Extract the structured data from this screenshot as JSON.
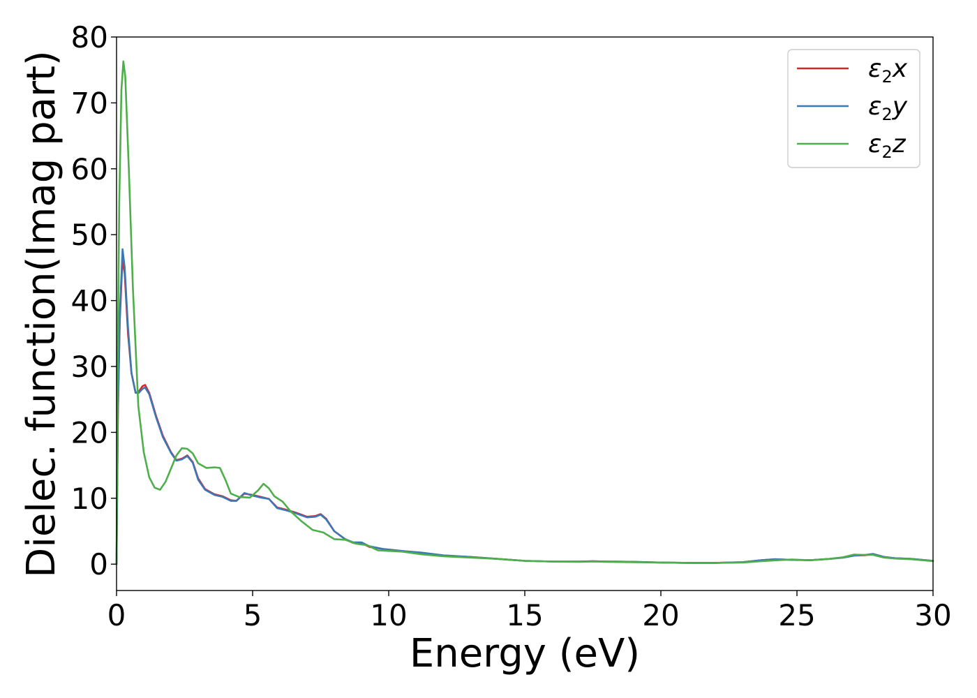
{
  "chart_data": {
    "type": "line",
    "xlabel": "Energy (eV)",
    "ylabel": "Dielec. function(Imag part)",
    "xlim": [
      0,
      30
    ],
    "ylim": [
      -4,
      80
    ],
    "xticks": [
      0,
      5,
      10,
      15,
      20,
      25,
      30
    ],
    "yticks": [
      0,
      10,
      20,
      30,
      40,
      50,
      60,
      70,
      80
    ],
    "grid": false,
    "legend_position": "top-right",
    "series": [
      {
        "name": "ε2x",
        "legend_symbol": "ε",
        "legend_sub": "2",
        "legend_var": "x",
        "color": "#d62728",
        "points": [
          [
            0,
            0
          ],
          [
            0.05,
            22
          ],
          [
            0.12,
            37
          ],
          [
            0.22,
            46.5
          ],
          [
            0.3,
            44
          ],
          [
            0.42,
            35
          ],
          [
            0.55,
            29
          ],
          [
            0.7,
            26
          ],
          [
            0.82,
            26.2
          ],
          [
            0.95,
            27
          ],
          [
            1.05,
            27.2
          ],
          [
            1.2,
            26
          ],
          [
            1.45,
            22.5
          ],
          [
            1.7,
            19.5
          ],
          [
            2.0,
            17
          ],
          [
            2.2,
            15.8
          ],
          [
            2.4,
            16
          ],
          [
            2.6,
            16.5
          ],
          [
            2.8,
            15.5
          ],
          [
            3.0,
            13
          ],
          [
            3.25,
            11.4
          ],
          [
            3.6,
            10.6
          ],
          [
            3.9,
            10.3
          ],
          [
            4.2,
            9.7
          ],
          [
            4.4,
            9.6
          ],
          [
            4.7,
            10.7
          ],
          [
            5.0,
            10.5
          ],
          [
            5.3,
            10.2
          ],
          [
            5.6,
            9.9
          ],
          [
            5.9,
            8.6
          ],
          [
            6.2,
            8.3
          ],
          [
            6.6,
            7.8
          ],
          [
            7.0,
            7.2
          ],
          [
            7.3,
            7.3
          ],
          [
            7.5,
            7.6
          ],
          [
            7.7,
            6.9
          ],
          [
            8.0,
            5.0
          ],
          [
            8.4,
            3.8
          ],
          [
            8.7,
            3.2
          ],
          [
            9.0,
            3.2
          ],
          [
            9.3,
            2.6
          ],
          [
            9.8,
            2.3
          ],
          [
            10.5,
            2.0
          ],
          [
            11.2,
            1.7
          ],
          [
            12.0,
            1.3
          ],
          [
            13.0,
            1.1
          ],
          [
            14.0,
            0.8
          ],
          [
            15.0,
            0.5
          ],
          [
            16.0,
            0.4
          ],
          [
            17.0,
            0.4
          ],
          [
            17.5,
            0.45
          ],
          [
            18.0,
            0.4
          ],
          [
            19.0,
            0.35
          ],
          [
            20.0,
            0.25
          ],
          [
            21.0,
            0.2
          ],
          [
            22.0,
            0.2
          ],
          [
            23.0,
            0.3
          ],
          [
            23.7,
            0.6
          ],
          [
            24.2,
            0.75
          ],
          [
            24.8,
            0.65
          ],
          [
            25.5,
            0.6
          ],
          [
            26.2,
            0.8
          ],
          [
            26.7,
            1.0
          ],
          [
            27.1,
            1.3
          ],
          [
            27.5,
            1.35
          ],
          [
            27.8,
            1.5
          ],
          [
            28.2,
            1.1
          ],
          [
            28.6,
            0.9
          ],
          [
            29.2,
            0.8
          ],
          [
            30,
            0.5
          ]
        ]
      },
      {
        "name": "ε2y",
        "legend_symbol": "ε",
        "legend_sub": "2",
        "legend_var": "y",
        "color": "#3c78b5",
        "points": [
          [
            0,
            0
          ],
          [
            0.05,
            23
          ],
          [
            0.12,
            38
          ],
          [
            0.22,
            47.8
          ],
          [
            0.3,
            45
          ],
          [
            0.42,
            36
          ],
          [
            0.55,
            29
          ],
          [
            0.7,
            26
          ],
          [
            0.82,
            26
          ],
          [
            0.95,
            26.6
          ],
          [
            1.05,
            26.8
          ],
          [
            1.2,
            25.8
          ],
          [
            1.45,
            22.3
          ],
          [
            1.7,
            19.3
          ],
          [
            2.0,
            16.9
          ],
          [
            2.2,
            15.7
          ],
          [
            2.4,
            15.9
          ],
          [
            2.6,
            16.4
          ],
          [
            2.8,
            15.4
          ],
          [
            3.0,
            12.8
          ],
          [
            3.25,
            11.3
          ],
          [
            3.6,
            10.5
          ],
          [
            3.9,
            10.2
          ],
          [
            4.2,
            9.6
          ],
          [
            4.4,
            9.6
          ],
          [
            4.7,
            10.8
          ],
          [
            5.0,
            10.4
          ],
          [
            5.3,
            10.1
          ],
          [
            5.6,
            9.9
          ],
          [
            5.9,
            8.5
          ],
          [
            6.2,
            8.2
          ],
          [
            6.6,
            7.7
          ],
          [
            7.0,
            7.1
          ],
          [
            7.3,
            7.2
          ],
          [
            7.5,
            7.5
          ],
          [
            7.7,
            6.8
          ],
          [
            8.0,
            5.0
          ],
          [
            8.4,
            3.8
          ],
          [
            8.7,
            3.3
          ],
          [
            9.0,
            3.3
          ],
          [
            9.3,
            2.7
          ],
          [
            9.8,
            2.3
          ],
          [
            10.5,
            2.0
          ],
          [
            11.2,
            1.75
          ],
          [
            12.0,
            1.35
          ],
          [
            13.0,
            1.1
          ],
          [
            14.0,
            0.8
          ],
          [
            15.0,
            0.5
          ],
          [
            16.0,
            0.4
          ],
          [
            17.0,
            0.4
          ],
          [
            17.5,
            0.45
          ],
          [
            18.0,
            0.4
          ],
          [
            19.0,
            0.35
          ],
          [
            20.0,
            0.25
          ],
          [
            21.0,
            0.2
          ],
          [
            22.0,
            0.2
          ],
          [
            23.0,
            0.3
          ],
          [
            23.7,
            0.6
          ],
          [
            24.2,
            0.75
          ],
          [
            24.8,
            0.65
          ],
          [
            25.5,
            0.6
          ],
          [
            26.2,
            0.8
          ],
          [
            26.7,
            1.0
          ],
          [
            27.1,
            1.3
          ],
          [
            27.5,
            1.4
          ],
          [
            27.8,
            1.55
          ],
          [
            28.2,
            1.1
          ],
          [
            28.6,
            0.9
          ],
          [
            29.2,
            0.8
          ],
          [
            30,
            0.5
          ]
        ]
      },
      {
        "name": "ε2z",
        "legend_symbol": "ε",
        "legend_sub": "2",
        "legend_var": "z",
        "color": "#4daf4a",
        "points": [
          [
            0,
            0
          ],
          [
            0.04,
            30
          ],
          [
            0.1,
            55
          ],
          [
            0.18,
            72
          ],
          [
            0.25,
            76.3
          ],
          [
            0.32,
            74
          ],
          [
            0.45,
            60
          ],
          [
            0.6,
            42
          ],
          [
            0.8,
            24
          ],
          [
            1.0,
            17
          ],
          [
            1.2,
            13.2
          ],
          [
            1.4,
            11.6
          ],
          [
            1.6,
            11.3
          ],
          [
            1.8,
            12.5
          ],
          [
            2.0,
            14.5
          ],
          [
            2.2,
            16.5
          ],
          [
            2.4,
            17.6
          ],
          [
            2.6,
            17.5
          ],
          [
            2.8,
            16.8
          ],
          [
            3.0,
            15.3
          ],
          [
            3.3,
            14.6
          ],
          [
            3.6,
            14.7
          ],
          [
            3.8,
            14.6
          ],
          [
            4.0,
            12.8
          ],
          [
            4.2,
            10.7
          ],
          [
            4.5,
            10.2
          ],
          [
            4.9,
            10.1
          ],
          [
            5.2,
            11.2
          ],
          [
            5.4,
            12.2
          ],
          [
            5.6,
            11.5
          ],
          [
            5.8,
            10.3
          ],
          [
            6.1,
            9.5
          ],
          [
            6.4,
            8.0
          ],
          [
            6.8,
            6.5
          ],
          [
            7.2,
            5.2
          ],
          [
            7.6,
            4.8
          ],
          [
            8.0,
            3.8
          ],
          [
            8.4,
            3.7
          ],
          [
            8.8,
            3.1
          ],
          [
            9.2,
            2.9
          ],
          [
            9.6,
            2.1
          ],
          [
            10.5,
            1.9
          ],
          [
            11.2,
            1.5
          ],
          [
            12.0,
            1.2
          ],
          [
            13.0,
            1.0
          ],
          [
            14.0,
            0.8
          ],
          [
            15.0,
            0.5
          ],
          [
            16.0,
            0.4
          ],
          [
            17.0,
            0.35
          ],
          [
            17.5,
            0.4
          ],
          [
            18.0,
            0.35
          ],
          [
            19.0,
            0.3
          ],
          [
            20.0,
            0.25
          ],
          [
            21.0,
            0.2
          ],
          [
            22.0,
            0.2
          ],
          [
            23.0,
            0.25
          ],
          [
            23.7,
            0.45
          ],
          [
            24.3,
            0.6
          ],
          [
            24.8,
            0.7
          ],
          [
            25.5,
            0.6
          ],
          [
            26.2,
            0.8
          ],
          [
            26.7,
            1.05
          ],
          [
            27.1,
            1.45
          ],
          [
            27.5,
            1.4
          ],
          [
            27.8,
            1.4
          ],
          [
            28.2,
            1.0
          ],
          [
            28.6,
            0.85
          ],
          [
            29.2,
            0.75
          ],
          [
            30,
            0.45
          ]
        ]
      }
    ]
  }
}
